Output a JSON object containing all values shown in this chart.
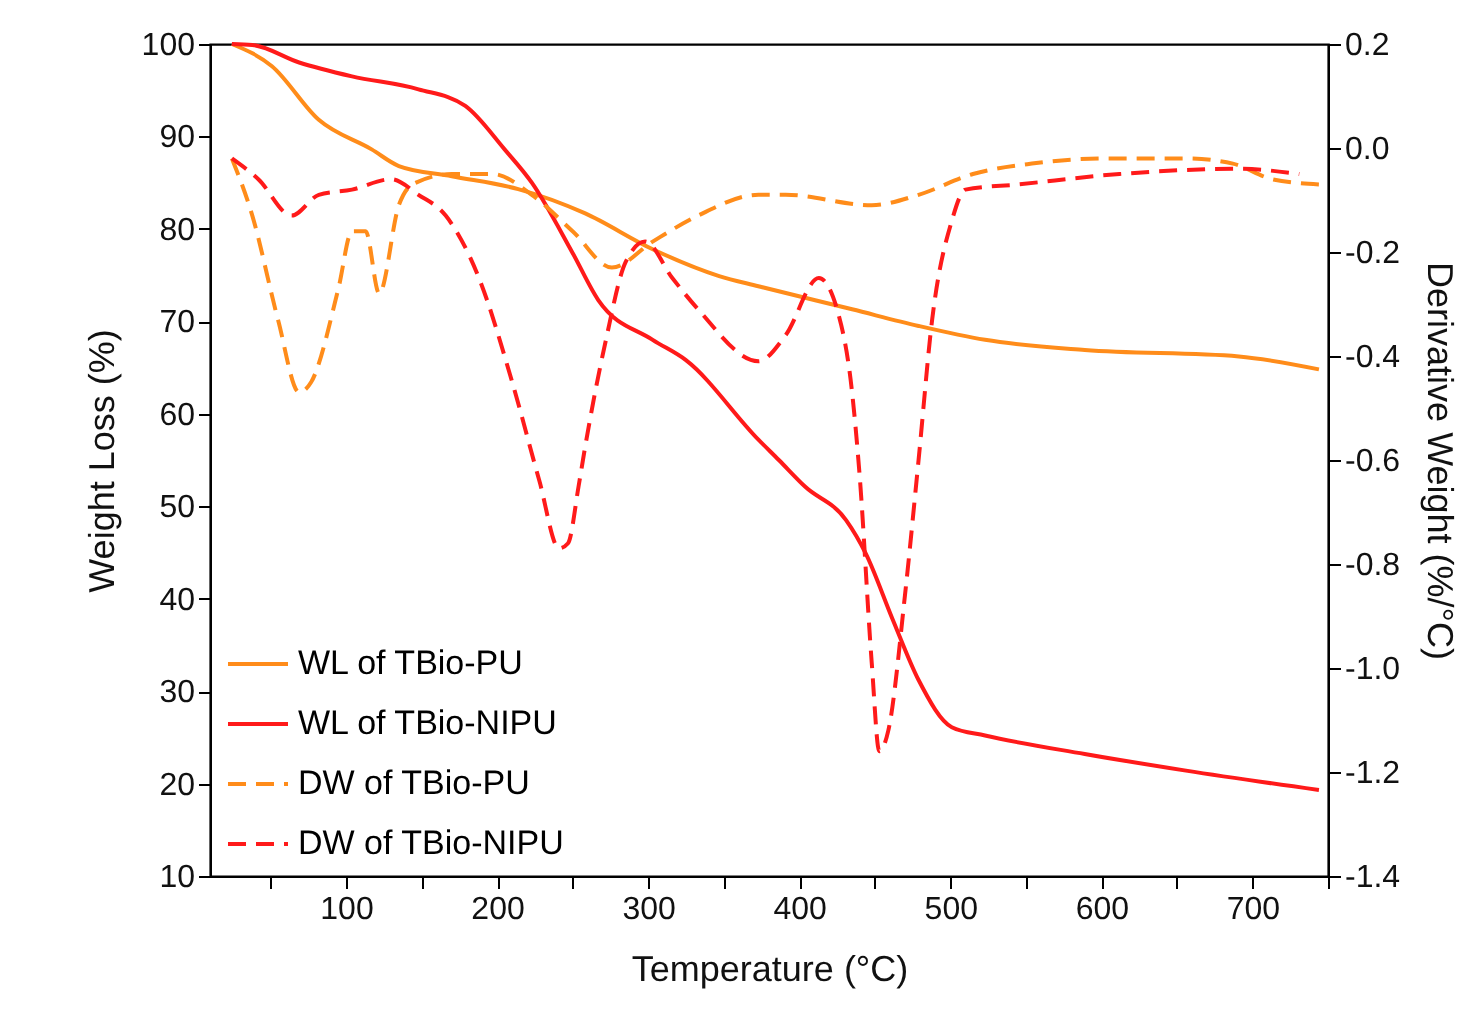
{
  "chart_data": {
    "type": "line",
    "xlabel": "Temperature (°C)",
    "ylabel": "Weight Loss (%)",
    "y2label": "Derivative Weight (%/°C)",
    "xlim": [
      10,
      750
    ],
    "xticks": [
      {
        "value": 50,
        "label": null
      },
      100,
      {
        "value": 150,
        "label": null
      },
      200,
      {
        "value": 250,
        "label": null
      },
      300,
      {
        "value": 350,
        "label": null
      },
      400,
      {
        "value": 450,
        "label": null
      },
      500,
      {
        "value": 550,
        "label": null
      },
      600,
      {
        "value": 650,
        "label": null
      },
      700,
      {
        "value": 750,
        "label": null
      }
    ],
    "ylim": [
      10,
      100
    ],
    "yticks": [
      10,
      20,
      30,
      40,
      50,
      60,
      70,
      80,
      90,
      100
    ],
    "y2lim": [
      -1.4,
      0.2
    ],
    "y2ticks": [
      {
        "value": -1.4,
        "label": "-1.4"
      },
      {
        "value": -1.2,
        "label": "-1.2"
      },
      {
        "value": -1,
        "label": "-1.0"
      },
      {
        "value": -0.8,
        "label": "-0.8"
      },
      {
        "value": -0.6,
        "label": "-0.6"
      },
      {
        "value": -0.4,
        "label": "-0.4"
      },
      {
        "value": -0.2,
        "label": "-0.2"
      },
      {
        "value": 0,
        "label": "0.0"
      },
      {
        "value": 0.2,
        "label": "0.2"
      }
    ],
    "grid": false,
    "legend": "bottom left",
    "marker": "none",
    "series": [
      {
        "name": "WL of TBio-PU",
        "color": "#ff8c1a",
        "line_style": "solid",
        "x": [
          24.5,
          51,
          82,
          117,
          135,
          170,
          214,
          258,
          303,
          347,
          373,
          435,
          479,
          523,
          589,
          691,
          744
        ],
        "values": [
          100,
          97.6,
          91.8,
          88.6,
          86.8,
          85.7,
          84.3,
          81.7,
          77.8,
          74.9,
          73.8,
          71.3,
          69.5,
          68.0,
          66.9,
          66.2,
          64.8
        ]
      },
      {
        "name": "WL of TBio-NIPU",
        "color": "#ff1a1a",
        "line_style": "solid",
        "x": [
          24.5,
          38,
          69,
          104,
          148,
          179,
          205,
          223,
          250,
          267,
          303,
          325,
          373,
          386.5,
          404,
          431,
          444,
          462,
          479,
          501,
          523,
          589,
          656,
          744
        ],
        "values": [
          100,
          99.9,
          98,
          96.5,
          95.1,
          93.3,
          88.6,
          85,
          77.4,
          72.3,
          68.0,
          65.8,
          57.2,
          55.0,
          52.1,
          48.5,
          44.9,
          37.7,
          31.2,
          26.1,
          25.2,
          23.2,
          21.4,
          19.3
        ]
      },
      {
        "name": "DW of TBio-PU",
        "color": "#ff8c1a",
        "line_style": "dashed",
        "axis": "y2",
        "x": [
          24.5,
          38,
          55,
          69,
          77,
          95,
          104,
          113,
          122,
          135,
          144,
          170,
          197,
          223,
          250,
          276,
          303,
          333,
          373,
          391,
          448,
          479,
          515,
          554,
          603,
          656,
          687,
          713,
          744
        ],
        "values": [
          -0.02,
          -0.13,
          -0.33,
          -0.47,
          -0.45,
          -0.27,
          -0.16,
          -0.16,
          -0.28,
          -0.11,
          -0.07,
          -0.05,
          -0.05,
          -0.09,
          -0.16,
          -0.23,
          -0.18,
          -0.13,
          -0.09,
          -0.09,
          -0.11,
          -0.09,
          -0.05,
          -0.03,
          -0.02,
          -0.02,
          -0.03,
          -0.06,
          -0.07
        ]
      },
      {
        "name": "DW of TBio-NIPU",
        "color": "#ff1a1a",
        "line_style": "dashed",
        "axis": "y2",
        "x": [
          24.5,
          42,
          64,
          82,
          104,
          130,
          148,
          166,
          188,
          210,
          228,
          241,
          247,
          254,
          258,
          272,
          285,
          298,
          316,
          333,
          373,
          391,
          413,
          426,
          435,
          440,
          448,
          453,
          459,
          470,
          479,
          488,
          501,
          510,
          545,
          612,
          691,
          731
        ],
        "values": [
          -0.02,
          -0.06,
          -0.13,
          -0.09,
          -0.08,
          -0.06,
          -0.09,
          -0.13,
          -0.25,
          -0.45,
          -0.64,
          -0.77,
          -0.76,
          -0.65,
          -0.58,
          -0.37,
          -0.22,
          -0.18,
          -0.25,
          -0.31,
          -0.41,
          -0.36,
          -0.25,
          -0.32,
          -0.47,
          -0.63,
          -0.99,
          -1.16,
          -1.12,
          -0.86,
          -0.6,
          -0.33,
          -0.14,
          -0.08,
          -0.07,
          -0.05,
          -0.04,
          -0.05
        ]
      }
    ]
  }
}
